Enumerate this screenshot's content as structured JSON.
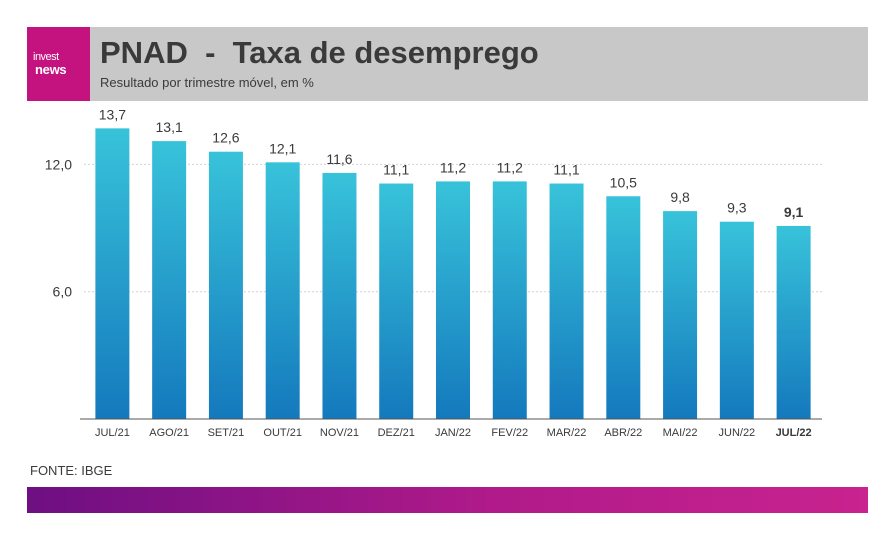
{
  "brand": {
    "logo_line1": "invest",
    "logo_line2": "news",
    "color": "#c4127f",
    "watermark": "investnews"
  },
  "header": {
    "title": "PNAD  -  Taxa de desemprego",
    "subtitle": "Resultado por trimestre móvel, em %"
  },
  "source": "FONTE: IBGE",
  "colors": {
    "bar_top": "#38c3da",
    "bar_bottom": "#1479bd",
    "header_bg": "#c8c8c8",
    "footer_start": "#6d0f82",
    "footer_end": "#c8238f"
  },
  "chart_data": {
    "type": "bar",
    "categories": [
      "JUL/21",
      "AGO/21",
      "SET/21",
      "OUT/21",
      "NOV/21",
      "DEZ/21",
      "JAN/22",
      "FEV/22",
      "MAR/22",
      "ABR/22",
      "MAI/22",
      "JUN/22",
      "JUL/22"
    ],
    "values": [
      13.7,
      13.1,
      12.6,
      12.1,
      11.6,
      11.1,
      11.2,
      11.2,
      11.1,
      10.5,
      9.8,
      9.3,
      9.1
    ],
    "value_labels": [
      "13,7",
      "13,1",
      "12,6",
      "12,1",
      "11,6",
      "11,1",
      "11,2",
      "11,2",
      "11,1",
      "10,5",
      "9,8",
      "9,3",
      "9,1"
    ],
    "yticks": [
      6.0,
      12.0
    ],
    "ytick_labels": [
      "6,0",
      "12,0"
    ],
    "ylim": [
      0,
      14
    ],
    "highlight_index": 12,
    "grid": "horizontal dashed"
  }
}
